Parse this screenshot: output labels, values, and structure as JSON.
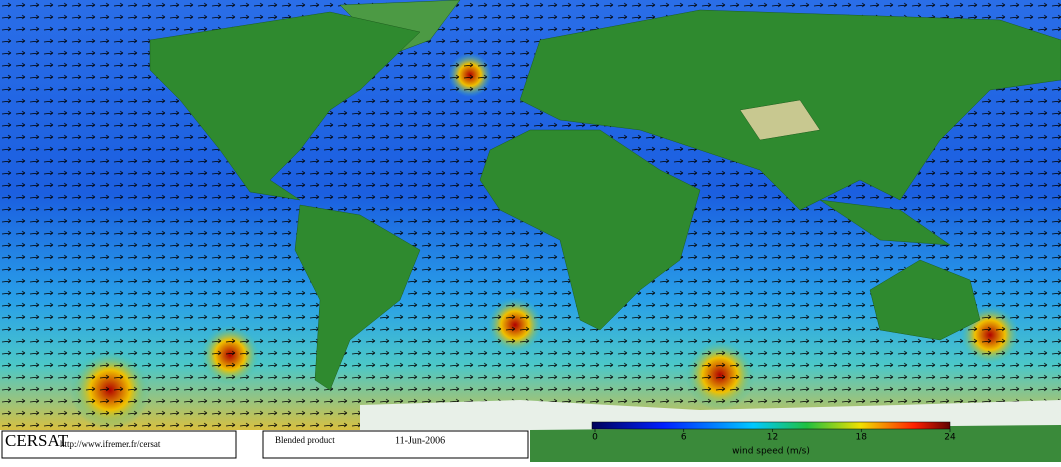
{
  "footer": {
    "logo": "CERSAT",
    "url": "http://www.ifremer.fr/cersat",
    "product": "Blended product",
    "date": "11-Jun-2006"
  },
  "colorbar": {
    "label": "wind speed (m/s)",
    "range": [
      0,
      24
    ],
    "ticks": [
      0,
      6,
      12,
      18,
      24
    ]
  }
}
